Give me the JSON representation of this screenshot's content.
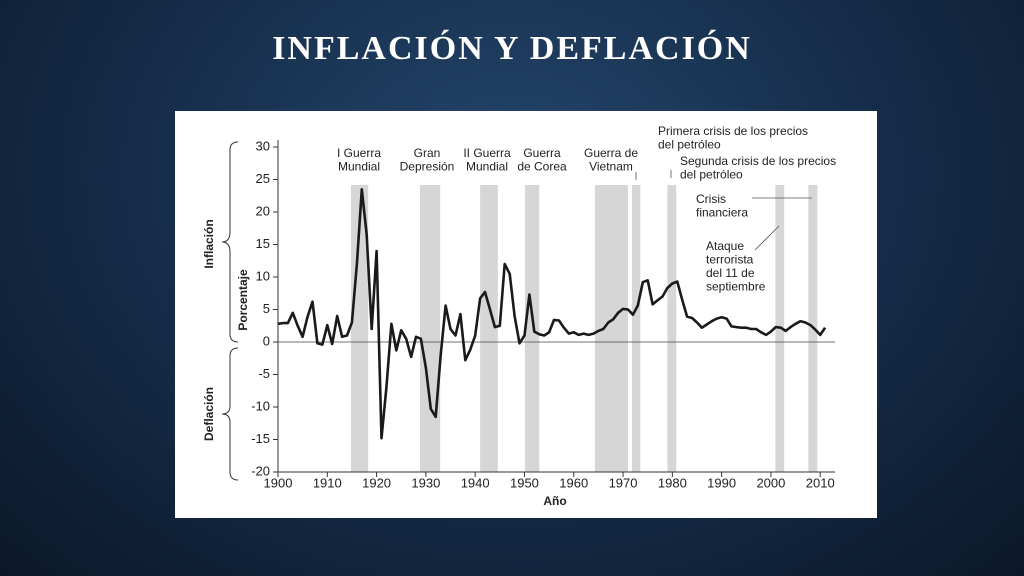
{
  "title": "INFLACIÓN Y DEFLACIÓN",
  "chart_data": {
    "type": "line",
    "xlabel": "Año",
    "ylabel": "Porcentaje",
    "side_labels": [
      "Inflación",
      "Deflación"
    ],
    "xlim": [
      1900,
      2013
    ],
    "ylim": [
      -20,
      30
    ],
    "xticks": [
      1900,
      1910,
      1920,
      1930,
      1940,
      1950,
      1960,
      1970,
      1980,
      1990,
      2000,
      2010
    ],
    "yticks": [
      30,
      25,
      20,
      15,
      10,
      5,
      0,
      -5,
      -10,
      -15,
      -20
    ],
    "color": "#1a1a1a",
    "band_color": "#d6d6d6",
    "bands": [
      [
        1914.8,
        1918.3
      ],
      [
        1928.8,
        1932.9
      ],
      [
        1941,
        1944.6
      ],
      [
        1950.1,
        1953
      ],
      [
        1964.3,
        1971
      ],
      [
        1971.8,
        1973.5
      ],
      [
        1979,
        1980.8
      ],
      [
        2000.9,
        2002.7
      ],
      [
        2007.6,
        2009.4
      ]
    ],
    "annotations": [
      [
        "I Guerra",
        "Mundial"
      ],
      [
        "Gran",
        "Depresión"
      ],
      [
        "II Guerra",
        "Mundial"
      ],
      [
        "Guerra",
        "de Corea"
      ],
      [
        "Guerra de",
        "Vietnam"
      ],
      [
        "Primera crisis de los precios",
        "del petróleo"
      ],
      [
        "Segunda crisis de los precios",
        "del petróleo"
      ],
      [
        "Crisis",
        "financiera"
      ],
      [
        "Ataque",
        "terrorista",
        "del 11 de",
        "septiembre"
      ]
    ],
    "x": [
      1900,
      1901,
      1902,
      1903,
      1904,
      1905,
      1906,
      1907,
      1908,
      1909,
      1910,
      1911,
      1912,
      1913,
      1914,
      1915,
      1916,
      1917,
      1918,
      1919,
      1920,
      1921,
      1922,
      1923,
      1924,
      1925,
      1926,
      1927,
      1928,
      1929,
      1930,
      1931,
      1932,
      1933,
      1934,
      1935,
      1936,
      1937,
      1938,
      1939,
      1940,
      1941,
      1942,
      1943,
      1944,
      1945,
      1946,
      1947,
      1948,
      1949,
      1950,
      1951,
      1952,
      1953,
      1954,
      1955,
      1956,
      1957,
      1958,
      1959,
      1960,
      1961,
      1962,
      1963,
      1964,
      1965,
      1966,
      1967,
      1968,
      1969,
      1970,
      1971,
      1972,
      1973,
      1974,
      1975,
      1976,
      1977,
      1978,
      1979,
      1980,
      1981,
      1982,
      1983,
      1984,
      1985,
      1986,
      1987,
      1988,
      1989,
      1990,
      1991,
      1992,
      1993,
      1994,
      1995,
      1996,
      1997,
      1998,
      1999,
      2000,
      2001,
      2002,
      2003,
      2004,
      2005,
      2006,
      2007,
      2008,
      2009,
      2010,
      2011
    ],
    "values": [
      2.8,
      2.9,
      2.9,
      4.5,
      2.5,
      0.8,
      3.9,
      6.2,
      -0.2,
      -0.4,
      2.6,
      -0.3,
      4.0,
      0.8,
      1.0,
      3.0,
      12.0,
      23.5,
      16.5,
      2.0,
      14.0,
      -14.8,
      -7.0,
      2.8,
      -1.3,
      1.8,
      0.5,
      -2.3,
      0.8,
      0.5,
      -4.0,
      -10.3,
      -11.5,
      -2.0,
      5.6,
      2.0,
      1.0,
      4.3,
      -2.8,
      -1.2,
      1.0,
      6.7,
      7.7,
      5.0,
      2.3,
      2.5,
      12.0,
      10.5,
      4.0,
      -0.2,
      1.0,
      7.3,
      1.6,
      1.2,
      1.0,
      1.5,
      3.4,
      3.3,
      2.2,
      1.3,
      1.5,
      1.1,
      1.3,
      1.1,
      1.3,
      1.7,
      2.0,
      3.0,
      3.5,
      4.5,
      5.1,
      5.0,
      4.2,
      5.6,
      9.2,
      9.5,
      5.8,
      6.4,
      7.0,
      8.3,
      9.0,
      9.3,
      6.5,
      3.9,
      3.7,
      3.0,
      2.2,
      2.7,
      3.2,
      3.6,
      3.8,
      3.6,
      2.4,
      2.3,
      2.2,
      2.2,
      2.0,
      2.0,
      1.5,
      1.1,
      1.6,
      2.3,
      2.2,
      1.7,
      2.3,
      2.8,
      3.2,
      3.0,
      2.6,
      1.9,
      1.1,
      2.2
    ]
  }
}
